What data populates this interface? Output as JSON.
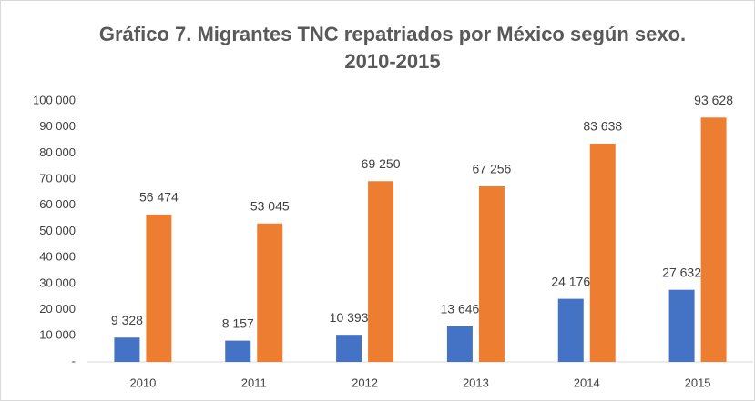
{
  "chart_data": {
    "type": "bar",
    "title": "Gráfico 7. Migrantes TNC repatriados por México según sexo. 2010-2015",
    "categories": [
      "2010",
      "2011",
      "2012",
      "2013",
      "2014",
      "2015"
    ],
    "series": [
      {
        "color": "#4472c4",
        "values": [
          9328,
          8157,
          10393,
          13646,
          24176,
          27632
        ],
        "value_labels": [
          "9 328",
          "8 157",
          "10 393",
          "13 646",
          "24 176",
          "27 632"
        ]
      },
      {
        "color": "#ed7d31",
        "values": [
          56474,
          53045,
          69250,
          67256,
          83638,
          93628
        ],
        "value_labels": [
          "56 474",
          "53 045",
          "69 250",
          "67 256",
          "83 638",
          "93 628"
        ]
      }
    ],
    "ylim": [
      0,
      100000
    ],
    "yticks": [
      {
        "value": 0,
        "label": "-"
      },
      {
        "value": 10000,
        "label": "10 000"
      },
      {
        "value": 20000,
        "label": "20 000"
      },
      {
        "value": 30000,
        "label": "30 000"
      },
      {
        "value": 40000,
        "label": "40 000"
      },
      {
        "value": 50000,
        "label": "50 000"
      },
      {
        "value": 60000,
        "label": "60 000"
      },
      {
        "value": 70000,
        "label": "70 000"
      },
      {
        "value": 80000,
        "label": "80 000"
      },
      {
        "value": 90000,
        "label": "90 000"
      },
      {
        "value": 100000,
        "label": "100 000"
      }
    ],
    "grid": false
  }
}
